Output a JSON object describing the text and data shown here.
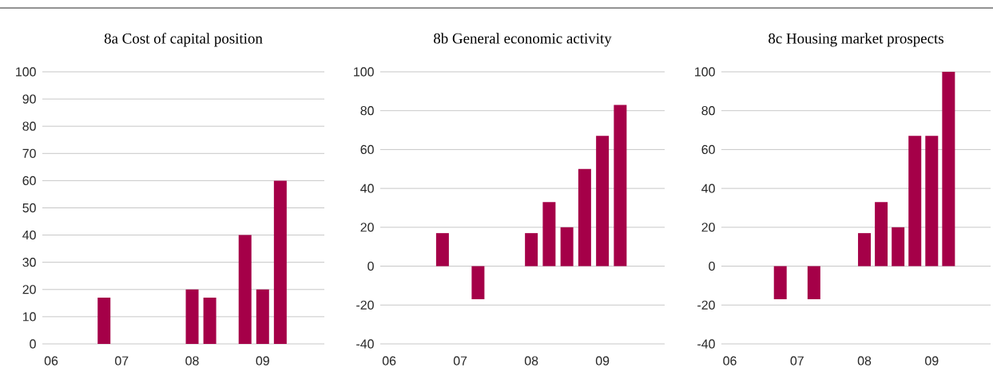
{
  "chart_data": [
    {
      "type": "bar",
      "title": "8a Cost of capital position",
      "categories": [
        "06",
        null,
        null,
        null,
        "07",
        null,
        null,
        null,
        "08",
        null,
        null,
        null,
        "09",
        null,
        null,
        null
      ],
      "values": [
        0,
        0,
        0,
        17,
        0,
        0,
        0,
        0,
        20,
        17,
        0,
        40,
        20,
        60,
        null,
        null
      ],
      "color": "#a50048",
      "ylim": [
        0,
        100
      ],
      "yticks": [
        0,
        10,
        20,
        30,
        40,
        50,
        60,
        70,
        80,
        90,
        100
      ],
      "grid": "y"
    },
    {
      "type": "bar",
      "title": "8b General economic activity",
      "categories": [
        "06",
        null,
        null,
        null,
        "07",
        null,
        null,
        null,
        "08",
        null,
        null,
        null,
        "09",
        null,
        null,
        null
      ],
      "values": [
        0,
        0,
        0,
        17,
        0,
        -17,
        0,
        0,
        17,
        33,
        20,
        50,
        67,
        83,
        null,
        null
      ],
      "color": "#a50048",
      "ylim": [
        -40,
        100
      ],
      "yticks": [
        -40,
        -20,
        0,
        20,
        40,
        60,
        80,
        100
      ],
      "grid": "y"
    },
    {
      "type": "bar",
      "title": "8c Housing market prospects",
      "categories": [
        "06",
        null,
        null,
        null,
        "07",
        null,
        null,
        null,
        "08",
        null,
        null,
        null,
        "09",
        null,
        null,
        null
      ],
      "values": [
        0,
        0,
        0,
        -17,
        0,
        -17,
        0,
        0,
        17,
        33,
        20,
        67,
        67,
        100,
        null,
        null
      ],
      "color": "#a50048",
      "ylim": [
        -40,
        100
      ],
      "yticks": [
        -40,
        -20,
        0,
        20,
        40,
        60,
        80,
        100
      ],
      "grid": "y"
    }
  ]
}
